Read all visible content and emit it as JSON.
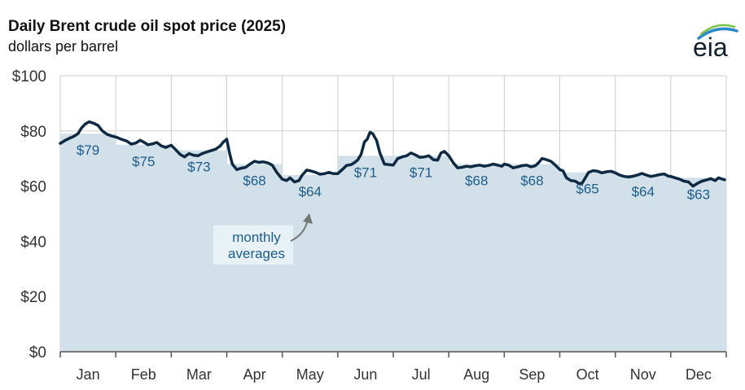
{
  "header": {
    "title": "Daily Brent crude oil spot price (2025)",
    "subtitle": "dollars per barrel"
  },
  "logo": {
    "text": "eia",
    "icon": "eia-logo-icon"
  },
  "colors": {
    "line": "#0e2a43",
    "bar_fill": "#d2e0ea",
    "label": "#1b5c8a",
    "grid": "#cccccc",
    "annotation_text": "#1b5c8a",
    "annotation_bg": "#e7f1f6",
    "arrow": "#777777"
  },
  "annotation": {
    "line1": "monthly",
    "line2": "averages",
    "icon": "curved-arrow-icon"
  },
  "chart_data": {
    "type": "line",
    "title": "Daily Brent crude oil spot price (2025)",
    "ylabel": "dollars per barrel",
    "xlabel": "",
    "ylim": [
      0,
      100
    ],
    "y_ticks": [
      {
        "value": 0,
        "label": "$0"
      },
      {
        "value": 20,
        "label": "$20"
      },
      {
        "value": 40,
        "label": "$40"
      },
      {
        "value": 60,
        "label": "$60"
      },
      {
        "value": 80,
        "label": "$80"
      },
      {
        "value": 100,
        "label": "$100"
      }
    ],
    "categories": [
      "Jan",
      "Feb",
      "Mar",
      "Apr",
      "May",
      "Jun",
      "Jul",
      "Aug",
      "Sep",
      "Oct",
      "Nov",
      "Dec"
    ],
    "monthly_averages": {
      "name": "monthly averages",
      "values": [
        79,
        75,
        73,
        68,
        64,
        71,
        71,
        68,
        68,
        65,
        64,
        63
      ],
      "labels": [
        "$79",
        "$75",
        "$73",
        "$68",
        "$64",
        "$71",
        "$71",
        "$68",
        "$68",
        "$65",
        "$64",
        "$63"
      ]
    },
    "daily_series": {
      "name": "Daily Brent spot price",
      "x_unit": "month (fractional, 0 = Jan 1, 12 = Dec 31)",
      "points": [
        [
          0.0,
          75.5
        ],
        [
          0.08,
          76.5
        ],
        [
          0.16,
          77.3
        ],
        [
          0.24,
          78.0
        ],
        [
          0.32,
          79.0
        ],
        [
          0.38,
          81.0
        ],
        [
          0.45,
          82.5
        ],
        [
          0.52,
          83.3
        ],
        [
          0.6,
          82.8
        ],
        [
          0.68,
          82.0
        ],
        [
          0.76,
          80.0
        ],
        [
          0.84,
          78.8
        ],
        [
          0.92,
          78.2
        ],
        [
          1.0,
          77.8
        ],
        [
          1.1,
          77.0
        ],
        [
          1.2,
          76.3
        ],
        [
          1.28,
          75.2
        ],
        [
          1.36,
          75.6
        ],
        [
          1.44,
          76.6
        ],
        [
          1.5,
          76.0
        ],
        [
          1.58,
          75.0
        ],
        [
          1.66,
          75.3
        ],
        [
          1.74,
          75.8
        ],
        [
          1.82,
          74.6
        ],
        [
          1.9,
          74.0
        ],
        [
          2.0,
          74.8
        ],
        [
          2.08,
          73.2
        ],
        [
          2.16,
          71.5
        ],
        [
          2.24,
          70.6
        ],
        [
          2.32,
          71.8
        ],
        [
          2.4,
          71.2
        ],
        [
          2.48,
          71.0
        ],
        [
          2.56,
          71.8
        ],
        [
          2.64,
          72.4
        ],
        [
          2.72,
          72.9
        ],
        [
          2.8,
          73.4
        ],
        [
          2.88,
          74.5
        ],
        [
          2.94,
          76.0
        ],
        [
          3.0,
          77.0
        ],
        [
          3.05,
          72.0
        ],
        [
          3.1,
          68.0
        ],
        [
          3.18,
          66.0
        ],
        [
          3.26,
          66.5
        ],
        [
          3.34,
          66.8
        ],
        [
          3.42,
          68.0
        ],
        [
          3.5,
          69.0
        ],
        [
          3.58,
          68.6
        ],
        [
          3.66,
          68.8
        ],
        [
          3.74,
          68.4
        ],
        [
          3.82,
          67.6
        ],
        [
          3.9,
          65.0
        ],
        [
          4.0,
          62.5
        ],
        [
          4.08,
          62.0
        ],
        [
          4.14,
          63.0
        ],
        [
          4.22,
          61.5
        ],
        [
          4.3,
          62.0
        ],
        [
          4.36,
          64.0
        ],
        [
          4.44,
          65.8
        ],
        [
          4.52,
          65.5
        ],
        [
          4.6,
          65.0
        ],
        [
          4.68,
          64.3
        ],
        [
          4.76,
          64.5
        ],
        [
          4.84,
          65.0
        ],
        [
          4.92,
          64.5
        ],
        [
          5.0,
          64.5
        ],
        [
          5.08,
          66.0
        ],
        [
          5.16,
          67.5
        ],
        [
          5.24,
          67.8
        ],
        [
          5.3,
          68.5
        ],
        [
          5.36,
          69.5
        ],
        [
          5.42,
          71.5
        ],
        [
          5.48,
          76.0
        ],
        [
          5.53,
          77.0
        ],
        [
          5.58,
          79.5
        ],
        [
          5.63,
          79.0
        ],
        [
          5.7,
          76.5
        ],
        [
          5.76,
          72.0
        ],
        [
          5.84,
          68.0
        ],
        [
          5.92,
          67.8
        ],
        [
          6.0,
          67.6
        ],
        [
          6.08,
          70.0
        ],
        [
          6.16,
          70.6
        ],
        [
          6.24,
          71.0
        ],
        [
          6.32,
          72.0
        ],
        [
          6.4,
          71.3
        ],
        [
          6.48,
          70.4
        ],
        [
          6.56,
          70.6
        ],
        [
          6.64,
          71.0
        ],
        [
          6.72,
          69.6
        ],
        [
          6.8,
          69.4
        ],
        [
          6.86,
          72.0
        ],
        [
          6.92,
          72.6
        ],
        [
          7.0,
          71.0
        ],
        [
          7.08,
          68.5
        ],
        [
          7.16,
          66.6
        ],
        [
          7.24,
          66.8
        ],
        [
          7.32,
          67.2
        ],
        [
          7.4,
          67.0
        ],
        [
          7.48,
          67.4
        ],
        [
          7.56,
          67.6
        ],
        [
          7.64,
          67.2
        ],
        [
          7.72,
          67.5
        ],
        [
          7.8,
          68.0
        ],
        [
          7.88,
          67.6
        ],
        [
          7.96,
          67.2
        ],
        [
          8.0,
          68.0
        ],
        [
          8.08,
          67.6
        ],
        [
          8.16,
          66.6
        ],
        [
          8.24,
          67.0
        ],
        [
          8.32,
          67.4
        ],
        [
          8.4,
          67.6
        ],
        [
          8.48,
          67.0
        ],
        [
          8.56,
          67.4
        ],
        [
          8.62,
          68.5
        ],
        [
          8.68,
          70.0
        ],
        [
          8.76,
          69.6
        ],
        [
          8.84,
          69.0
        ],
        [
          8.92,
          67.6
        ],
        [
          9.0,
          66.0
        ],
        [
          9.06,
          65.5
        ],
        [
          9.12,
          63.0
        ],
        [
          9.2,
          62.0
        ],
        [
          9.28,
          61.8
        ],
        [
          9.34,
          61.0
        ],
        [
          9.4,
          61.0
        ],
        [
          9.46,
          63.0
        ],
        [
          9.52,
          65.0
        ],
        [
          9.6,
          65.6
        ],
        [
          9.68,
          65.4
        ],
        [
          9.76,
          64.8
        ],
        [
          9.84,
          65.2
        ],
        [
          9.92,
          65.4
        ],
        [
          10.0,
          64.8
        ],
        [
          10.08,
          64.0
        ],
        [
          10.16,
          63.5
        ],
        [
          10.24,
          63.3
        ],
        [
          10.32,
          63.6
        ],
        [
          10.4,
          64.0
        ],
        [
          10.48,
          64.6
        ],
        [
          10.56,
          64.0
        ],
        [
          10.64,
          63.5
        ],
        [
          10.72,
          63.8
        ],
        [
          10.8,
          64.2
        ],
        [
          10.88,
          64.4
        ],
        [
          10.96,
          63.6
        ],
        [
          11.0,
          63.5
        ],
        [
          11.08,
          63.0
        ],
        [
          11.16,
          62.5
        ],
        [
          11.24,
          61.8
        ],
        [
          11.32,
          61.5
        ],
        [
          11.4,
          60.0
        ],
        [
          11.48,
          61.0
        ],
        [
          11.56,
          61.8
        ],
        [
          11.64,
          62.2
        ],
        [
          11.72,
          62.7
        ],
        [
          11.8,
          62.0
        ],
        [
          11.86,
          63.0
        ],
        [
          11.92,
          62.6
        ],
        [
          11.97,
          62.3
        ]
      ]
    }
  }
}
